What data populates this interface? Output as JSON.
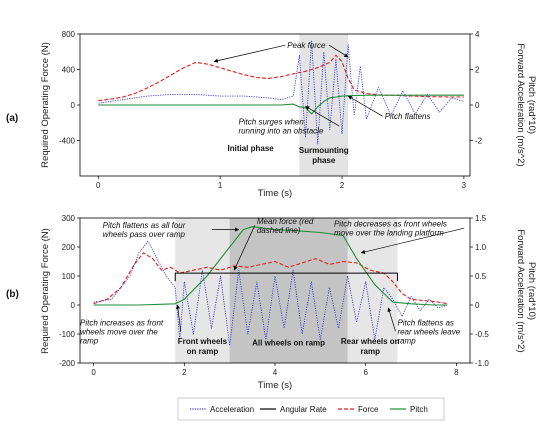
{
  "colors": {
    "acceleration": "#3b3bd6",
    "angular_rate": "#000000",
    "force": "#e02020",
    "pitch": "#1f8f3a",
    "shade_light": "#e8e8e8",
    "shade_dark": "#c4c4c4"
  },
  "legend": [
    "Acceleration",
    "Angular Rate",
    "Force",
    "Pitch"
  ],
  "chart_data": [
    {
      "type": "line",
      "panel_label": "(a)",
      "xlabel": "Time (s)",
      "ylabel_left": "Required Operating Force (N)",
      "ylabel_right": "Forward Acceleration (m/s^2)\nPitch (rad*10)",
      "xlim": [
        -0.15,
        3.05
      ],
      "ylim_left": [
        -800,
        800
      ],
      "ylim_right": [
        -4,
        4
      ],
      "xticks": [
        "0",
        "1",
        "2",
        "3"
      ],
      "yticks_left": [
        "-400",
        "0",
        "400",
        "800"
      ],
      "yticks_right": [
        "-2",
        "0",
        "2",
        "4"
      ],
      "shaded_regions": [
        {
          "x0": 1.65,
          "x1": 2.05,
          "shade": "light"
        }
      ],
      "series": [
        {
          "name": "Force",
          "axis": "left",
          "x": [
            0,
            0.1,
            0.2,
            0.3,
            0.4,
            0.5,
            0.6,
            0.7,
            0.8,
            0.9,
            1.0,
            1.1,
            1.2,
            1.3,
            1.4,
            1.5,
            1.6,
            1.7,
            1.8,
            1.9,
            1.95,
            2.0,
            2.05,
            2.1,
            2.2,
            2.3,
            2.5,
            2.7,
            2.9,
            3.0
          ],
          "y": [
            50,
            65,
            90,
            130,
            190,
            260,
            340,
            420,
            480,
            460,
            420,
            380,
            340,
            310,
            300,
            320,
            350,
            380,
            420,
            480,
            560,
            490,
            300,
            170,
            130,
            115,
            105,
            95,
            90,
            90
          ]
        },
        {
          "name": "Acceleration",
          "axis": "right",
          "x": [
            0,
            0.2,
            0.4,
            0.6,
            0.8,
            1.0,
            1.2,
            1.4,
            1.5,
            1.6,
            1.65,
            1.7,
            1.75,
            1.8,
            1.85,
            1.9,
            1.95,
            2.0,
            2.05,
            2.1,
            2.15,
            2.2,
            2.3,
            2.4,
            2.5,
            2.6,
            2.7,
            2.8,
            2.9,
            3.0
          ],
          "y": [
            0.1,
            0.3,
            0.5,
            0.6,
            0.6,
            0.5,
            0.5,
            0.4,
            0.3,
            0.5,
            2.8,
            -1.8,
            3.6,
            -2.2,
            3.0,
            -1.4,
            2.6,
            -1.6,
            3.4,
            -0.6,
            2.2,
            -0.8,
            1.0,
            -0.6,
            0.8,
            -0.5,
            0.6,
            -0.4,
            0.4,
            0.2
          ]
        },
        {
          "name": "Pitch",
          "axis": "right",
          "x": [
            0,
            0.5,
            1.0,
            1.5,
            1.6,
            1.65,
            1.7,
            1.75,
            1.8,
            1.85,
            1.9,
            1.95,
            2.0,
            2.05,
            2.1,
            2.2,
            2.4,
            2.6,
            2.8,
            3.0
          ],
          "y": [
            0,
            0,
            0,
            0,
            0.05,
            -0.1,
            -0.15,
            -0.5,
            -0.1,
            0.2,
            0.4,
            0.45,
            0.5,
            0.52,
            0.53,
            0.55,
            0.55,
            0.55,
            0.55,
            0.55
          ]
        }
      ],
      "annotations": [
        {
          "text": "Peak force",
          "x": 1.55,
          "y": 640,
          "arrows": [
            [
              0.95,
              490
            ],
            [
              2.05,
              540
            ]
          ]
        },
        {
          "text": "Pitch surges when\nrunning into an obstacle",
          "x": 1.15,
          "y": -220,
          "arrows": [
            [
              1.7,
              -15
            ]
          ]
        },
        {
          "text": "Pitch flattens",
          "x": 2.35,
          "y": -160,
          "arrows": [
            [
              2.05,
              100
            ]
          ]
        }
      ],
      "phase_labels": [
        {
          "text": "Initial  phase",
          "x": 1.25,
          "y": -520
        },
        {
          "text": "Surmounting\nphase",
          "x": 1.85,
          "y": -540
        }
      ]
    },
    {
      "type": "line",
      "panel_label": "(b)",
      "xlabel": "Time (s)",
      "ylabel_left": "Required Operating Force (N)",
      "ylabel_right": "Forward Acceleration (m/s^2)\nPitch (rad*10)",
      "xlim": [
        -0.3,
        8.3
      ],
      "ylim_left": [
        -200,
        300
      ],
      "ylim_right": [
        -1.0,
        1.5
      ],
      "xticks": [
        "0",
        "2",
        "4",
        "6",
        "8"
      ],
      "yticks_left": [
        "-200",
        "-100",
        "0",
        "100",
        "200",
        "300"
      ],
      "yticks_right": [
        "-1.0",
        "-0.5",
        "0",
        "0.5",
        "1.0",
        "1.5"
      ],
      "shaded_regions": [
        {
          "x0": 1.8,
          "x1": 6.7,
          "shade": "light"
        },
        {
          "x0": 3.0,
          "x1": 5.6,
          "shade": "dark"
        }
      ],
      "series": [
        {
          "name": "Force",
          "axis": "left",
          "x": [
            0,
            0.3,
            0.6,
            0.9,
            1.1,
            1.3,
            1.5,
            1.7,
            1.9,
            2.2,
            2.5,
            2.8,
            3.1,
            3.4,
            3.7,
            4.0,
            4.3,
            4.6,
            4.9,
            5.2,
            5.5,
            5.8,
            6.1,
            6.4,
            6.6,
            6.8,
            7.0,
            7.3,
            7.6,
            7.8
          ],
          "y": [
            5,
            20,
            60,
            140,
            180,
            160,
            120,
            130,
            110,
            120,
            130,
            120,
            135,
            130,
            140,
            150,
            130,
            145,
            160,
            140,
            150,
            145,
            120,
            110,
            80,
            40,
            20,
            15,
            10,
            5
          ]
        },
        {
          "name": "Acceleration",
          "axis": "right",
          "x": [
            0,
            0.4,
            0.8,
            1.0,
            1.2,
            1.4,
            1.6,
            1.8,
            1.9,
            2.0,
            2.2,
            2.4,
            2.6,
            2.8,
            3.0,
            3.2,
            3.4,
            3.6,
            3.8,
            4.0,
            4.2,
            4.4,
            4.6,
            4.8,
            5.0,
            5.2,
            5.4,
            5.6,
            5.8,
            6.0,
            6.2,
            6.4,
            6.6,
            6.8,
            7.0,
            7.2,
            7.4,
            7.6,
            7.8
          ],
          "y": [
            0.05,
            0.1,
            0.5,
            0.9,
            1.1,
            0.8,
            0.5,
            0.3,
            -0.6,
            0.4,
            -0.5,
            0.6,
            -0.4,
            0.5,
            -0.7,
            0.6,
            -0.5,
            0.4,
            -0.6,
            0.5,
            -0.4,
            0.6,
            -0.5,
            0.4,
            -0.6,
            0.3,
            -0.4,
            0.5,
            -0.3,
            0.4,
            -0.6,
            0.3,
            0.1,
            -0.2,
            0.15,
            -0.1,
            0.1,
            -0.05,
            0.0
          ]
        },
        {
          "name": "Pitch",
          "axis": "right",
          "x": [
            0,
            1.0,
            1.8,
            2.0,
            2.5,
            3.0,
            3.3,
            3.5,
            4.0,
            4.5,
            5.0,
            5.5,
            5.8,
            6.2,
            6.6,
            7.0,
            7.5,
            7.8
          ],
          "y": [
            0,
            0,
            0.02,
            0.1,
            0.5,
            1.0,
            1.3,
            1.35,
            1.3,
            1.28,
            1.25,
            1.2,
            0.8,
            0.35,
            0.05,
            0.02,
            0.0,
            0.0
          ]
        },
        {
          "name": "Mean force",
          "axis": "left",
          "style": "bracket",
          "x": [
            1.8,
            6.7
          ],
          "y": [
            110,
            110
          ]
        }
      ],
      "annotations": [
        {
          "text": "Pitch flattens as all four\nwheels pass over ramp",
          "x": 0.2,
          "y": 265,
          "arrows": [
            [
              3.2,
              260
            ]
          ]
        },
        {
          "text": "Mean force (red\ndashed line)",
          "x": 3.6,
          "y": 280,
          "arrows": [
            [
              3.1,
              120
            ]
          ]
        },
        {
          "text": "Pitch decreases as front wheels\nmove over the landing platform",
          "x": 5.3,
          "y": 270,
          "arrows": [
            [
              5.9,
              180
            ]
          ]
        },
        {
          "text": "Pitch increases as front\nwheels move over the\nramp",
          "x": -0.3,
          "y": -70,
          "arrows": [
            [
              1.85,
              0
            ]
          ]
        },
        {
          "text": "Pitch flattens as\nrear wheels leave\nramp",
          "x": 6.7,
          "y": -70,
          "arrows": [
            [
              6.5,
              -10
            ]
          ]
        }
      ],
      "phase_labels": [
        {
          "text": "Front wheels\non ramp",
          "x": 2.4,
          "y": -135
        },
        {
          "text": "All wheels on ramp",
          "x": 4.3,
          "y": -140
        },
        {
          "text": "Rear wheels on\nramp",
          "x": 6.1,
          "y": -135
        }
      ]
    }
  ]
}
